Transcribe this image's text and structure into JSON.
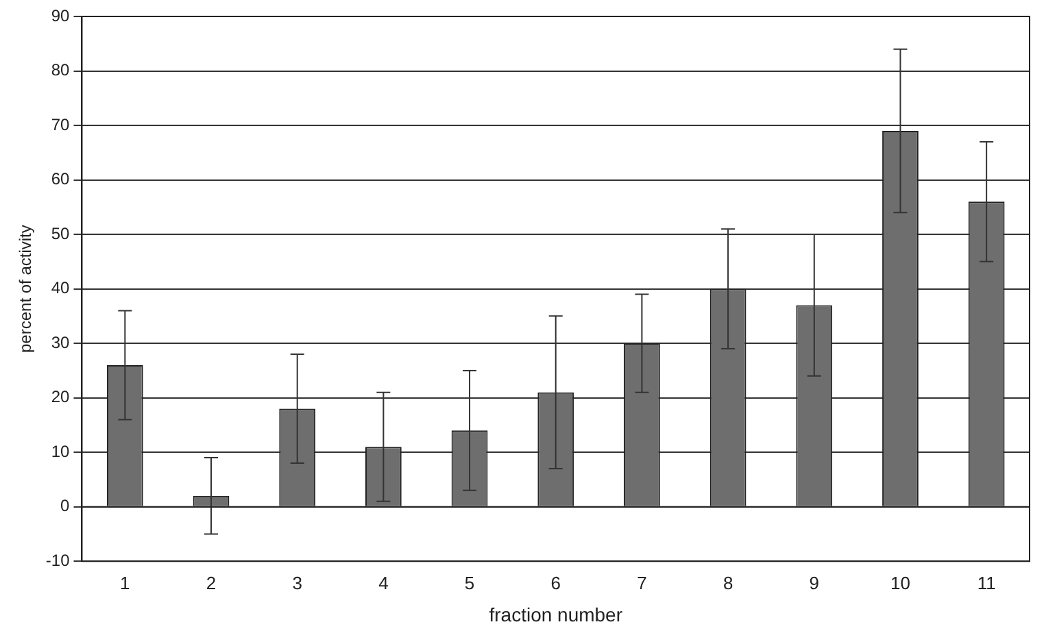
{
  "chart_data": {
    "type": "bar",
    "xlabel": "fraction number",
    "ylabel": "percent of activity",
    "categories": [
      "1",
      "2",
      "3",
      "4",
      "5",
      "6",
      "7",
      "8",
      "9",
      "10",
      "11"
    ],
    "values": [
      26,
      2,
      18,
      11,
      14,
      21,
      30,
      40,
      37,
      69,
      56
    ],
    "errors": [
      10,
      7,
      10,
      10,
      11,
      14,
      9,
      11,
      13,
      15,
      11
    ],
    "color": "#6e6e6e",
    "ylim": [
      -10,
      90
    ],
    "yticks": [
      -10,
      0,
      10,
      20,
      30,
      40,
      50,
      60,
      70,
      80,
      90
    ],
    "grid": "y",
    "legend": false
  }
}
